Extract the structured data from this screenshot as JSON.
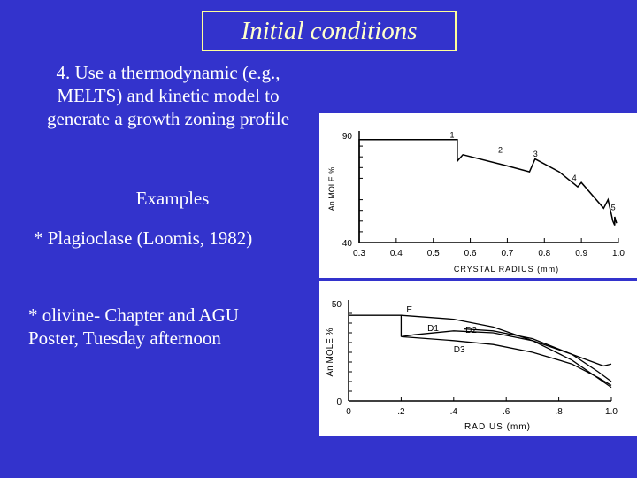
{
  "slide": {
    "title": "Initial conditions",
    "intro": [
      "4. Use a thermodynamic (e.g.,",
      "MELTS) and kinetic model to",
      "generate a growth zoning profile"
    ],
    "examples_heading": "Examples",
    "example_plagioclase": "* Plagioclase (Loomis, 1982)",
    "example_olivine": [
      "* olivine- Chapter and AGU",
      "Poster, Tuesday afternoon"
    ]
  },
  "chart_data": [
    {
      "type": "line",
      "xlabel": "CRYSTAL RADIUS (mm)",
      "ylabel": "An MOLE %",
      "xlim": [
        0.3,
        1.0
      ],
      "ylim": [
        40,
        90
      ],
      "x_ticks": [
        "0.3",
        "0.4",
        "0.5",
        "0.6",
        "0.7",
        "0.8",
        "0.9",
        "1.0"
      ],
      "y_ticks": [
        "40",
        "90"
      ],
      "annotations": [
        "1",
        "2",
        "3",
        "4",
        "5"
      ],
      "grid": false,
      "series": [
        {
          "x": [
            0.3,
            0.3,
            0.565,
            0.565,
            0.58,
            0.695,
            0.76,
            0.775,
            0.84,
            0.89,
            0.9,
            0.96,
            0.972,
            0.985,
            0.99,
            0.99,
            0.995
          ],
          "y": [
            40,
            88,
            88,
            78,
            81,
            76,
            73,
            79,
            73,
            66,
            68,
            56,
            60,
            50,
            48,
            52,
            49
          ]
        }
      ]
    },
    {
      "type": "line",
      "xlabel": "RADIUS (mm)",
      "ylabel": "An MOLE %",
      "xlim": [
        0,
        1.0
      ],
      "ylim": [
        0,
        50
      ],
      "x_ticks": [
        "0",
        ".2",
        ".4",
        ".6",
        ".8",
        "1.0"
      ],
      "y_ticks": [
        "0",
        "50"
      ],
      "grid": false,
      "series": [
        {
          "name": "E",
          "x": [
            0,
            0.2,
            0.4,
            0.55,
            0.7,
            0.85,
            1.0
          ],
          "y": [
            44,
            44,
            42,
            38,
            31,
            21,
            7
          ]
        },
        {
          "name": "D1",
          "x": [
            0.2,
            0.25,
            0.4,
            0.55,
            0.7,
            0.85,
            0.97,
            1.0
          ],
          "y": [
            33,
            34,
            36,
            35,
            31,
            24,
            18,
            19
          ]
        },
        {
          "name": "D2",
          "x": [
            0.44,
            0.55,
            0.7,
            0.85,
            0.95,
            1.0
          ],
          "y": [
            37,
            36,
            32,
            24,
            15,
            10
          ]
        },
        {
          "name": "D3",
          "x": [
            0.2,
            0.4,
            0.55,
            0.7,
            0.85,
            0.95,
            1.0
          ],
          "y": [
            33,
            31,
            29,
            25,
            19,
            12,
            8
          ]
        }
      ]
    }
  ]
}
